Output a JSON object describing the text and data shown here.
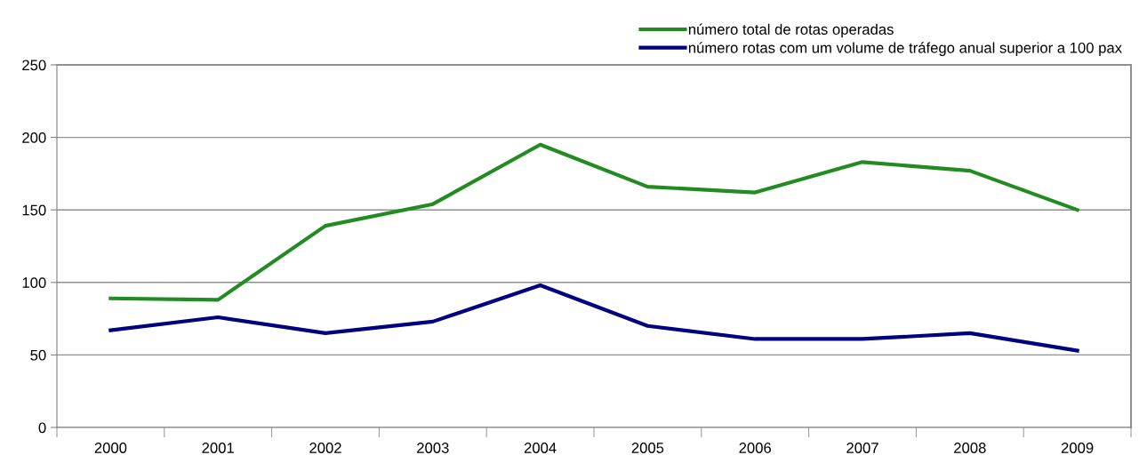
{
  "chart_data": {
    "type": "line",
    "categories": [
      "2000",
      "2001",
      "2002",
      "2003",
      "2004",
      "2005",
      "2006",
      "2007",
      "2008",
      "2009"
    ],
    "series": [
      {
        "name": "número total de rotas operadas",
        "color": "#228b22",
        "values": [
          89,
          88,
          139,
          154,
          195,
          166,
          162,
          183,
          177,
          150
        ]
      },
      {
        "name": "número rotas com um volume de tráfego anual superior a 100 pax",
        "color": "#000080",
        "values": [
          67,
          76,
          65,
          73,
          98,
          70,
          61,
          61,
          65,
          53
        ]
      }
    ],
    "ylim": [
      0,
      250
    ],
    "yticks": [
      0,
      50,
      100,
      150,
      200,
      250
    ],
    "grid": "y",
    "legend": "top right",
    "marker": "none",
    "line_style": "solid"
  }
}
